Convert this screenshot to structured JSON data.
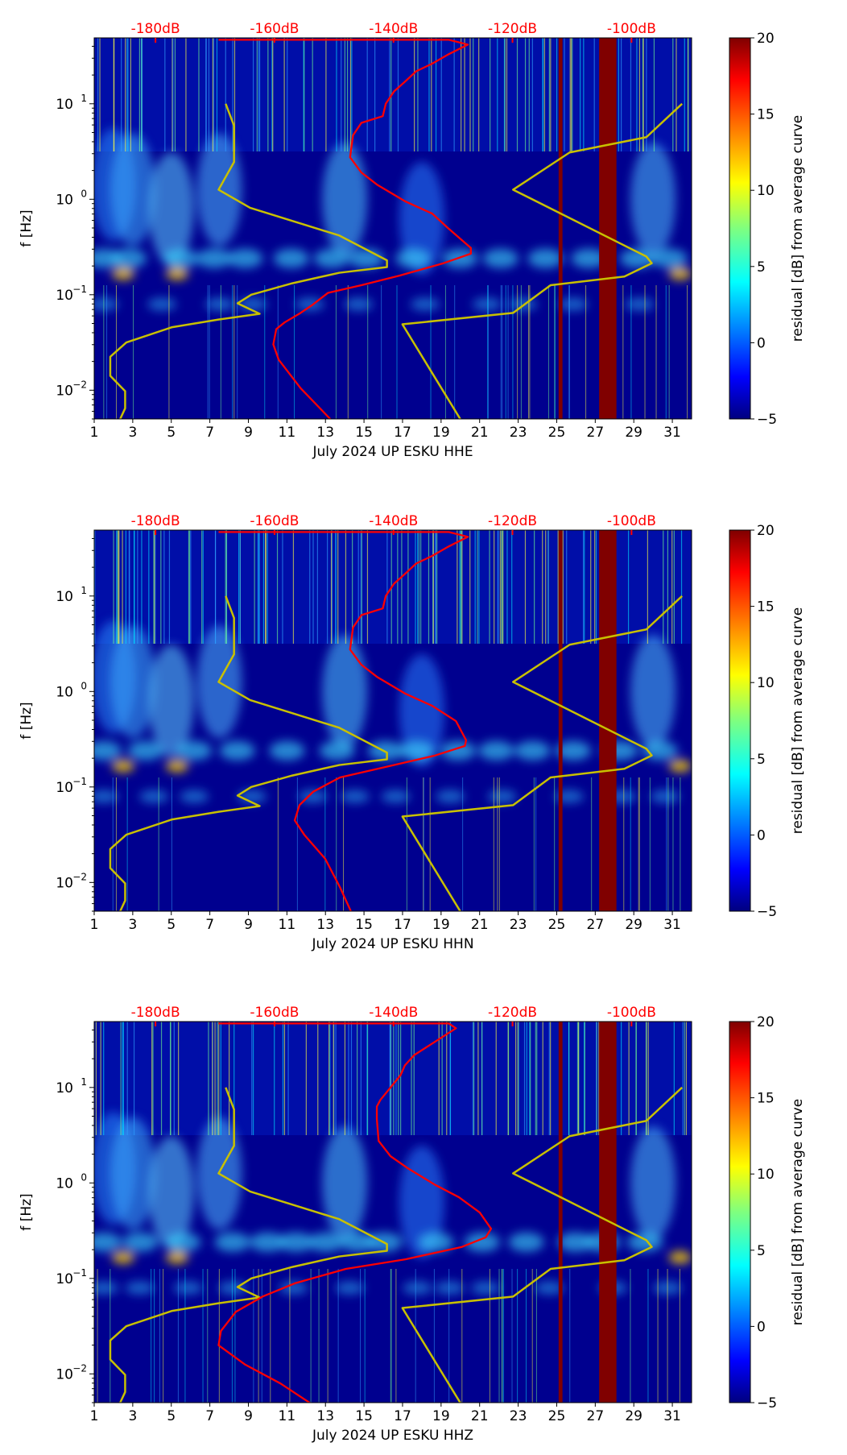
{
  "chart_data": [
    {
      "type": "heatmap",
      "title": "",
      "xlabel": "July 2024 UP ESKU  HHE",
      "ylabel": "f [Hz]",
      "channel": "HHE",
      "red_curve_log10f_dB": [
        [
          1.67,
          -169.4
        ],
        [
          1.67,
          -130.7
        ],
        [
          1.62,
          -127.5
        ],
        [
          1.52,
          -130.7
        ],
        [
          1.42,
          -133.5
        ],
        [
          1.34,
          -136.2
        ],
        [
          1.23,
          -138.1
        ],
        [
          1.13,
          -139.9
        ],
        [
          1.0,
          -141.3
        ],
        [
          0.87,
          -141.8
        ],
        [
          0.8,
          -145.4
        ],
        [
          0.67,
          -146.8
        ],
        [
          0.44,
          -147.3
        ],
        [
          0.28,
          -145.4
        ],
        [
          0.15,
          -142.7
        ],
        [
          -0.02,
          -138.1
        ],
        [
          -0.15,
          -133.5
        ],
        [
          -0.31,
          -130.7
        ],
        [
          -0.51,
          -127.0
        ],
        [
          -0.57,
          -127.0
        ],
        [
          -0.67,
          -131.6
        ],
        [
          -0.8,
          -139.0
        ],
        [
          -0.9,
          -145.4
        ],
        [
          -0.98,
          -151.0
        ],
        [
          -1.11,
          -153.7
        ],
        [
          -1.19,
          -155.6
        ],
        [
          -1.29,
          -158.3
        ],
        [
          -1.36,
          -159.7
        ],
        [
          -1.52,
          -160.2
        ],
        [
          -1.68,
          -159.3
        ],
        [
          -1.98,
          -155.6
        ],
        [
          -2.31,
          -150.5
        ]
      ]
    },
    {
      "type": "heatmap",
      "title": "",
      "xlabel": "July 2024 UP ESKU  HHN",
      "ylabel": "f [Hz]",
      "channel": "HHN",
      "red_curve_log10f_dB": [
        [
          1.67,
          -169.4
        ],
        [
          1.67,
          -130.7
        ],
        [
          1.62,
          -127.5
        ],
        [
          1.52,
          -130.7
        ],
        [
          1.42,
          -133.5
        ],
        [
          1.34,
          -136.2
        ],
        [
          1.23,
          -138.1
        ],
        [
          1.13,
          -139.9
        ],
        [
          1.0,
          -141.3
        ],
        [
          0.87,
          -141.8
        ],
        [
          0.8,
          -145.4
        ],
        [
          0.67,
          -146.8
        ],
        [
          0.44,
          -147.3
        ],
        [
          0.28,
          -145.4
        ],
        [
          0.15,
          -142.7
        ],
        [
          -0.02,
          -138.1
        ],
        [
          -0.15,
          -133.5
        ],
        [
          -0.31,
          -129.5
        ],
        [
          -0.51,
          -127.8
        ],
        [
          -0.57,
          -128.0
        ],
        [
          -0.67,
          -133.0
        ],
        [
          -0.8,
          -142.0
        ],
        [
          -0.9,
          -149.0
        ],
        [
          -1.05,
          -153.5
        ],
        [
          -1.19,
          -155.8
        ],
        [
          -1.35,
          -156.6
        ],
        [
          -1.5,
          -155.0
        ],
        [
          -1.75,
          -151.5
        ],
        [
          -2.05,
          -149.0
        ],
        [
          -2.31,
          -147.1
        ]
      ]
    },
    {
      "type": "heatmap",
      "title": "",
      "xlabel": "July 2024 UP ESKU  HHZ",
      "ylabel": "f [Hz]",
      "channel": "HHZ",
      "red_curve_log10f_dB": [
        [
          1.67,
          -169.4
        ],
        [
          1.67,
          -130.7
        ],
        [
          1.62,
          -129.5
        ],
        [
          1.52,
          -132.0
        ],
        [
          1.42,
          -134.5
        ],
        [
          1.34,
          -136.5
        ],
        [
          1.23,
          -138.1
        ],
        [
          1.13,
          -138.8
        ],
        [
          1.0,
          -140.5
        ],
        [
          0.87,
          -142.2
        ],
        [
          0.8,
          -142.8
        ],
        [
          0.67,
          -142.8
        ],
        [
          0.44,
          -142.5
        ],
        [
          0.28,
          -140.5
        ],
        [
          0.15,
          -137.5
        ],
        [
          -0.02,
          -133.0
        ],
        [
          -0.15,
          -129.0
        ],
        [
          -0.31,
          -125.5
        ],
        [
          -0.48,
          -123.6
        ],
        [
          -0.57,
          -124.5
        ],
        [
          -0.67,
          -128.5
        ],
        [
          -0.8,
          -138.0
        ],
        [
          -0.9,
          -148.0
        ],
        [
          -1.05,
          -156.5
        ],
        [
          -1.19,
          -162.0
        ],
        [
          -1.35,
          -166.5
        ],
        [
          -1.55,
          -169.0
        ],
        [
          -1.7,
          -169.4
        ],
        [
          -1.9,
          -165.0
        ],
        [
          -2.1,
          -159.0
        ],
        [
          -2.31,
          -153.9
        ]
      ]
    }
  ],
  "shared": {
    "x_ticks": [
      1,
      3,
      5,
      7,
      9,
      11,
      13,
      15,
      17,
      19,
      21,
      23,
      25,
      27,
      29,
      31
    ],
    "xlim": [
      1,
      32
    ],
    "y_ticks": [
      {
        "v": -2,
        "label": "10",
        "exp": "−2"
      },
      {
        "v": -1,
        "label": "10",
        "exp": "−1"
      },
      {
        "v": 0,
        "label": "10",
        "exp": "0"
      },
      {
        "v": 1,
        "label": "10",
        "exp": "1"
      }
    ],
    "ylim_hz": [
      0.005,
      49
    ],
    "top_axis_dB_ticks": [
      "-180dB",
      "-160dB",
      "-140dB",
      "-120dB",
      "-100dB"
    ],
    "top_axis_dB_values": [
      -180,
      -160,
      -140,
      -120,
      -100
    ],
    "top_axis_dB_range": [
      -190.3,
      -89.9
    ],
    "gap_days": [
      [
        25.1,
        25.3
      ],
      [
        27.2,
        28.1
      ]
    ],
    "nlnm_log10f_dB": [
      [
        1.0,
        -168.2
      ],
      [
        0.77,
        -166.8
      ],
      [
        0.39,
        -166.8
      ],
      [
        0.1,
        -169.4
      ],
      [
        -0.09,
        -164.1
      ],
      [
        -0.38,
        -149.1
      ],
      [
        -0.64,
        -141.1
      ],
      [
        -0.71,
        -141.1
      ],
      [
        -0.77,
        -149.1
      ],
      [
        -0.88,
        -157.0
      ],
      [
        -1.0,
        -163.9
      ],
      [
        -1.09,
        -166.2
      ],
      [
        -1.2,
        -162.5
      ],
      [
        -1.26,
        -169.4
      ],
      [
        -1.34,
        -177.2
      ],
      [
        -1.5,
        -184.9
      ],
      [
        -1.65,
        -187.6
      ],
      [
        -1.85,
        -187.6
      ],
      [
        -2.01,
        -185.1
      ],
      [
        -2.19,
        -185.1
      ],
      [
        -2.31,
        -186.0
      ]
    ],
    "nhnm_log10f_dB": [
      [
        1.0,
        -91.5
      ],
      [
        0.65,
        -97.5
      ],
      [
        0.49,
        -110.4
      ],
      [
        0.1,
        -119.9
      ],
      [
        -0.6,
        -97.5
      ],
      [
        -0.67,
        -96.6
      ],
      [
        -0.81,
        -101.2
      ],
      [
        -0.9,
        -113.6
      ],
      [
        -1.19,
        -119.9
      ],
      [
        -1.31,
        -138.5
      ],
      [
        -2.31,
        -128.7
      ]
    ],
    "colorbar": {
      "label": "residual [dB] from average curve",
      "ticks": [
        "20",
        "15",
        "10",
        "5",
        "0",
        "−5"
      ],
      "range": [
        -5,
        20
      ]
    },
    "colors": {
      "bg": "#00008f",
      "red": "#ff0000",
      "yellow": "#c8c000",
      "gap": "#800000"
    }
  }
}
